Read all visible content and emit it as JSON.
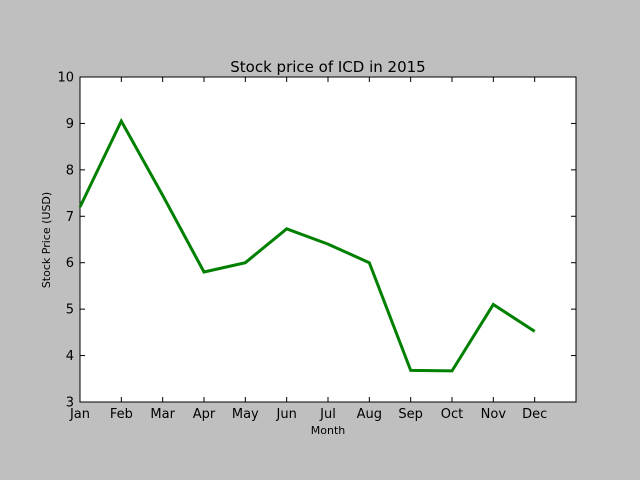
{
  "chart_data": {
    "type": "line",
    "title": "Stock price of ICD in 2015",
    "xlabel": "Month",
    "ylabel": "Stock Price (USD)",
    "categories": [
      "Jan",
      "Feb",
      "Mar",
      "Apr",
      "May",
      "Jun",
      "Jul",
      "Aug",
      "Sep",
      "Oct",
      "Nov",
      "Dec"
    ],
    "series": [
      {
        "color": "#008000",
        "values": [
          7.2,
          9.05,
          7.45,
          5.8,
          6.0,
          6.73,
          6.4,
          6.0,
          3.68,
          3.67,
          5.1,
          4.52
        ]
      }
    ],
    "ylim": [
      3,
      10
    ],
    "yticks": [
      "3",
      "4",
      "5",
      "6",
      "7",
      "8",
      "9",
      "10"
    ],
    "xlim": [
      0,
      12
    ],
    "grid": false,
    "legend": "none"
  }
}
